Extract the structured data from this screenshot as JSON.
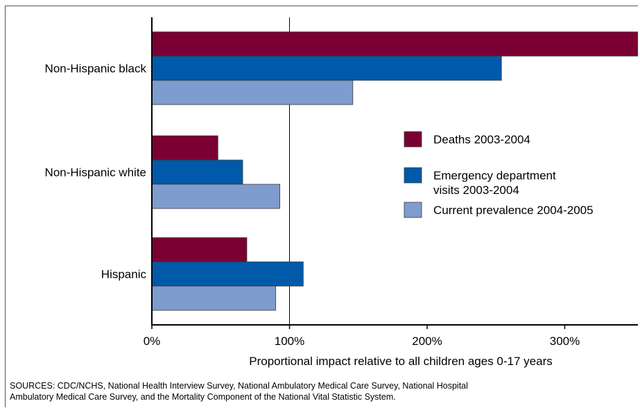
{
  "chart_data": {
    "type": "bar",
    "orientation": "horizontal",
    "categories": [
      "Non-Hispanic black",
      "Non-Hispanic white",
      "Hispanic"
    ],
    "series": [
      {
        "name": "Deaths 2003-2004",
        "color": "#7a0034",
        "values": [
          353,
          48,
          69
        ]
      },
      {
        "name": "Emergency department visits 2003-2004",
        "name_lines": [
          "Emergency department",
          "visits 2003-2004"
        ],
        "color": "#005aa9",
        "values": [
          254,
          66,
          110
        ]
      },
      {
        "name": "Current prevalence 2004-2005",
        "color": "#7f9ccf",
        "values": [
          146,
          93,
          90
        ]
      }
    ],
    "xlabel": "Proportional impact relative to all children ages 0-17 years",
    "ylabel": "",
    "xlim": [
      0,
      353
    ],
    "xticks": [
      0,
      100,
      200,
      300
    ],
    "xtick_labels": [
      "0%",
      "100%",
      "200%",
      "300%"
    ],
    "reference_line": 100,
    "grid": false,
    "legend_position": "right"
  },
  "sources": [
    "SOURCES:  CDC/NCHS, National Health Interview Survey, National Ambulatory Medical Care Survey, National Hospital",
    "Ambulatory Medical Care Survey, and the Mortality Component of the National Vital Statistic System."
  ]
}
